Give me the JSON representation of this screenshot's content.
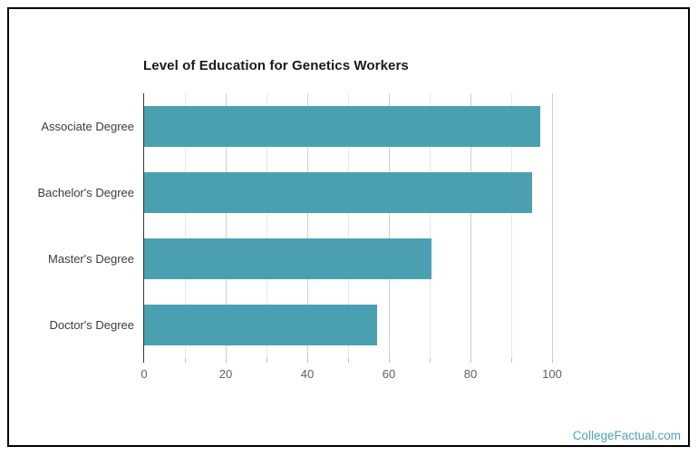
{
  "page": {
    "background_color": "#ffffff",
    "frame_border_color": "#000000"
  },
  "chart_data": {
    "type": "bar",
    "orientation": "horizontal",
    "title": "Level of Education for Genetics Workers",
    "categories": [
      "Associate Degree",
      "Bachelor's Degree",
      "Master's Degree",
      "Doctor's Degree"
    ],
    "values": [
      97,
      95,
      70.5,
      57
    ],
    "xlabel": "",
    "ylabel": "",
    "xlim": [
      0,
      100
    ],
    "x_tick_labels": [
      0,
      20,
      40,
      60,
      80,
      100
    ],
    "minor_grid_step": 10,
    "major_grid_step": 20,
    "grid": true,
    "legend": "none",
    "bar_color": "#4AA0B1",
    "major_gridline_color": "#cfcfcf",
    "minor_gridline_color": "#e8e8e8",
    "axis_line_color": "#333333"
  },
  "footer": {
    "watermark": "CollegeFactual.com",
    "color": "#4EA3B4"
  }
}
